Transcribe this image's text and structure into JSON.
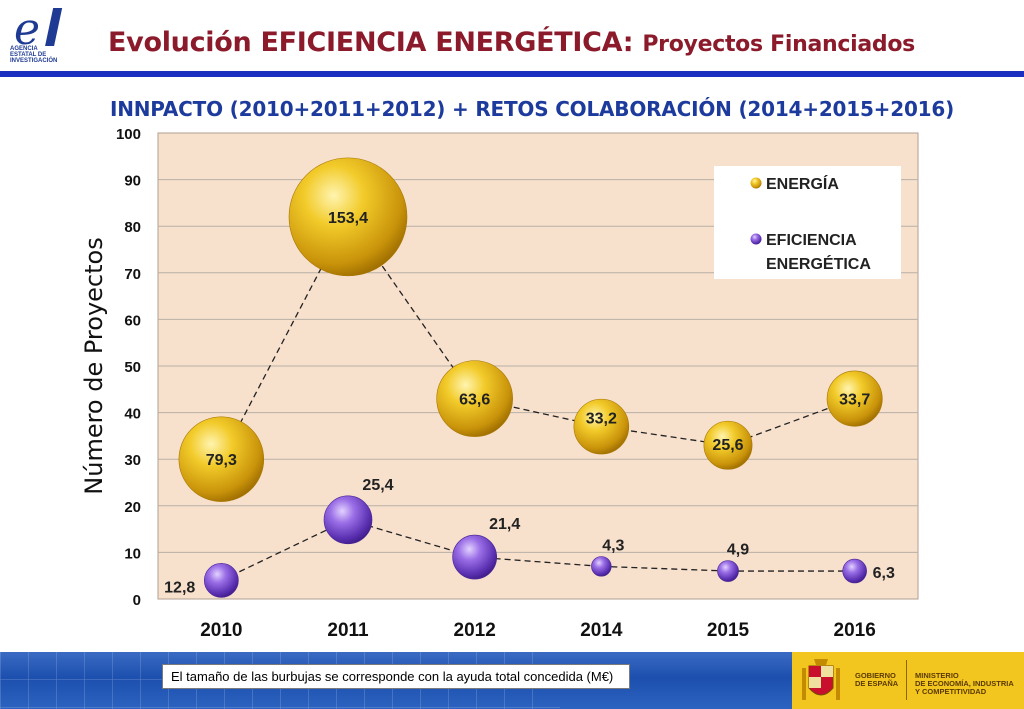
{
  "header": {
    "title_main": "Evolución EFICIENCIA ENERGÉTICA:",
    "title_sub": "Proyectos Financiados",
    "logo_lines": [
      "AGENCIA",
      "ESTATAL DE",
      "INVESTIGACIÓN"
    ]
  },
  "colors": {
    "title": "#8b1a2b",
    "subtitle": "#1d3b9c",
    "rule": "#1a2fbf",
    "plot_bg": "#f7e0cc",
    "energia": "#e6b81b",
    "eficiencia": "#8a5cd6"
  },
  "chart_data": {
    "type": "bubble",
    "title": "INNPACTO (2010+2011+2012) + RETOS COLABORACIÓN (2014+2015+2016)",
    "ylabel": "Número de Proyectos",
    "xlabel": "",
    "categories": [
      "2010",
      "2011",
      "2012",
      "2014",
      "2015",
      "2016"
    ],
    "ylim": [
      0,
      100
    ],
    "yticks": [
      0,
      10,
      20,
      30,
      40,
      50,
      60,
      70,
      80,
      90,
      100
    ],
    "grid": true,
    "legend_position": "top-right",
    "series": [
      {
        "name": "ENERGÍA",
        "values": [
          30,
          82,
          43,
          37,
          33,
          43
        ],
        "bubble_size": [
          79.3,
          153.4,
          63.6,
          33.2,
          25.6,
          33.7
        ],
        "labels": [
          "79,3",
          "153,4",
          "63,6",
          "33,2",
          "25,6",
          "33,7"
        ]
      },
      {
        "name": "EFICIENCIA ENERGÉTICA",
        "values": [
          4,
          17,
          9,
          7,
          6,
          6
        ],
        "bubble_size": [
          12.8,
          25.4,
          21.4,
          4.3,
          4.9,
          6.3
        ],
        "labels": [
          "12,8",
          "25,4",
          "21,4",
          "4,3",
          "4,9",
          "6,3"
        ]
      }
    ]
  },
  "footer": {
    "note": "El tamaño de las burbujas se corresponde con la ayuda total concedida (M€)",
    "gov_lines": [
      "GOBIERNO",
      "DE ESPAÑA"
    ],
    "ministry_lines": [
      "MINISTERIO",
      "DE ECONOMÍA, INDUSTRIA",
      "Y COMPETITIVIDAD"
    ]
  }
}
